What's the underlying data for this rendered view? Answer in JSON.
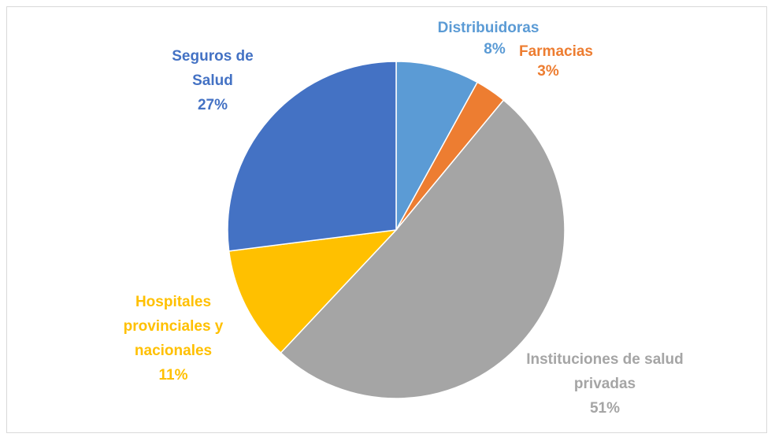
{
  "chart_data": {
    "type": "pie",
    "categories": [
      "Distribuidoras",
      "Farmacias",
      "Instituciones de salud privadas",
      "Hospitales provinciales y nacionales",
      "Seguros de Salud"
    ],
    "values": [
      8,
      3,
      51,
      11,
      27
    ],
    "value_labels": [
      "8%",
      "3%",
      "51%",
      "11%",
      "27%"
    ],
    "colors": [
      "#5b9bd5",
      "#ed7d31",
      "#a5a5a5",
      "#ffc000",
      "#4472c4"
    ]
  }
}
